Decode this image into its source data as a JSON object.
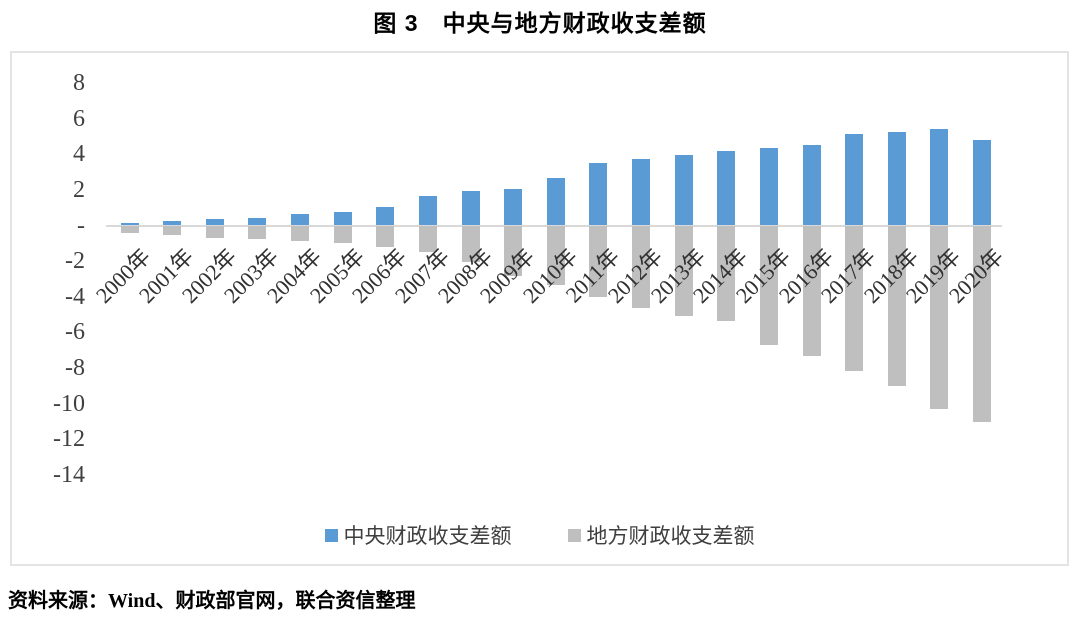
{
  "figure": {
    "source_note": "资料来源：Wind、财政部官网，联合资信整理"
  },
  "chart_data": {
    "type": "bar",
    "title": "图 3　中央与地方财政收支差额",
    "categories": [
      "2000年",
      "2001年",
      "2002年",
      "2003年",
      "2004年",
      "2005年",
      "2006年",
      "2007年",
      "2008年",
      "2009年",
      "2010年",
      "2011年",
      "2012年",
      "2013年",
      "2014年",
      "2015年",
      "2016年",
      "2017年",
      "2018年",
      "2019年",
      "2020年"
    ],
    "series": [
      {
        "name": "中央财政收支差额",
        "color": "#5B9BD5",
        "values": [
          0.15,
          0.28,
          0.36,
          0.44,
          0.66,
          0.78,
          1.05,
          1.63,
          1.93,
          2.07,
          2.65,
          3.48,
          3.74,
          3.97,
          4.19,
          4.37,
          4.5,
          5.13,
          5.27,
          5.42,
          4.77
        ]
      },
      {
        "name": "地方财政收支差额",
        "color": "#BFBFBF",
        "values": [
          -0.4,
          -0.53,
          -0.68,
          -0.74,
          -0.87,
          -1.01,
          -1.21,
          -1.48,
          -2.06,
          -2.84,
          -3.33,
          -4.02,
          -4.61,
          -5.07,
          -5.34,
          -6.73,
          -7.32,
          -8.18,
          -9.03,
          -10.27,
          -11.04
        ]
      }
    ],
    "y_axis": {
      "tick_labels": [
        "8",
        "6",
        "4",
        "2",
        "-",
        "-2",
        "-4",
        "-6",
        "-8",
        "-10",
        "-12",
        "-14"
      ],
      "tick_values": [
        8,
        6,
        4,
        2,
        0,
        -2,
        -4,
        -6,
        -8,
        -10,
        -12,
        -14
      ]
    },
    "ylim": [
      -14,
      8
    ],
    "xlabel": "",
    "ylabel": "",
    "grid": false,
    "legend_position": "bottom",
    "axis_line_color": "#D9D9D9"
  }
}
